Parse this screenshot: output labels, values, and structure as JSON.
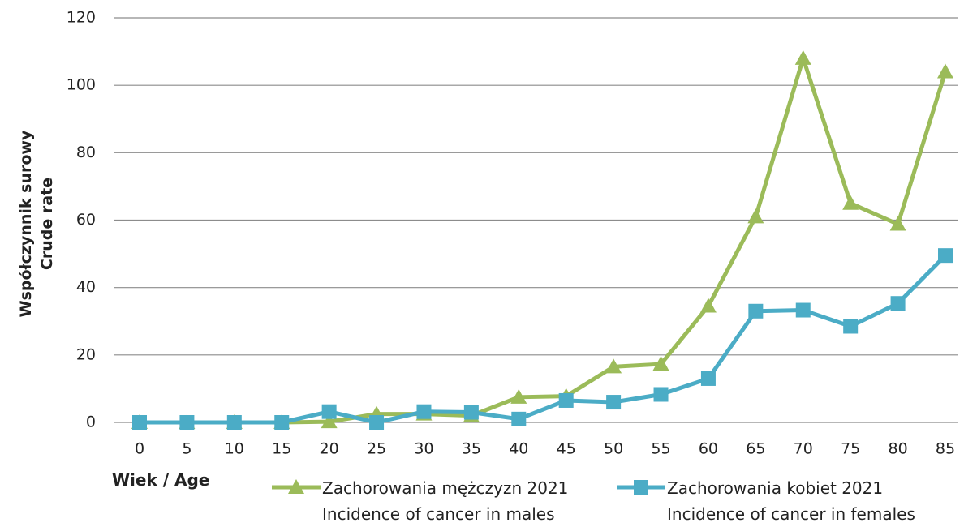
{
  "chart_data": {
    "type": "line",
    "y_label": "Współczynnik surowy\nCrude rate",
    "x_label": "Wiek / Age",
    "categories": [
      "0",
      "5",
      "10",
      "15",
      "20",
      "25",
      "30",
      "35",
      "40",
      "45",
      "50",
      "55",
      "60",
      "65",
      "70",
      "75",
      "80",
      "85"
    ],
    "series": [
      {
        "name": "Zachorowania mężczyzn 2021\nIncidence of cancer in males",
        "color": "#9bbb59",
        "marker": "triangle",
        "values": [
          0,
          0,
          0,
          0,
          0.2,
          2.5,
          2.5,
          2,
          7.5,
          7.8,
          16.5,
          17.3,
          34.5,
          61,
          108,
          65,
          58.8,
          104
        ]
      },
      {
        "name": "Zachorowania kobiet 2021\nIncidence of cancer in females",
        "color": "#4bacc6",
        "marker": "square",
        "values": [
          0,
          0,
          0,
          0,
          3.2,
          0,
          3.2,
          3,
          1,
          6.5,
          6,
          8.3,
          13,
          33,
          33.3,
          28.5,
          35.3,
          49.5
        ]
      }
    ],
    "ylim": [
      0,
      120
    ],
    "yticks": [
      0,
      20,
      40,
      60,
      80,
      100,
      120
    ],
    "grid": true
  }
}
